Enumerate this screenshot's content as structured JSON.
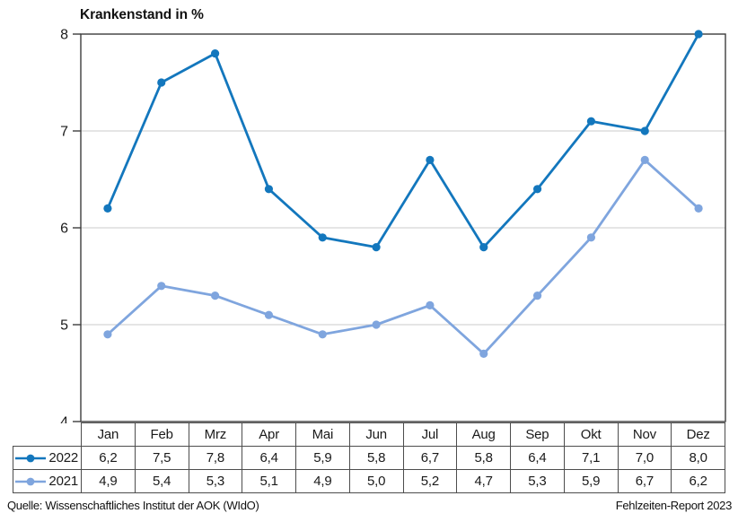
{
  "chart_data": {
    "type": "line",
    "title": "Krankenstand in %",
    "categories": [
      "Jan",
      "Feb",
      "Mrz",
      "Apr",
      "Mai",
      "Jun",
      "Jul",
      "Aug",
      "Sep",
      "Okt",
      "Nov",
      "Dez"
    ],
    "series": [
      {
        "name": "2022",
        "values": [
          6.2,
          7.5,
          7.8,
          6.4,
          5.9,
          5.8,
          6.7,
          5.8,
          6.4,
          7.1,
          7.0,
          8.0
        ],
        "labels": [
          "6,2",
          "7,5",
          "7,8",
          "6,4",
          "5,9",
          "5,8",
          "6,7",
          "5,8",
          "6,4",
          "7,1",
          "7,0",
          "8,0"
        ],
        "color": "#1377BD"
      },
      {
        "name": "2021",
        "values": [
          4.9,
          5.4,
          5.3,
          5.1,
          4.9,
          5.0,
          5.2,
          4.7,
          5.3,
          5.9,
          6.7,
          6.2
        ],
        "labels": [
          "4,9",
          "5,4",
          "5,3",
          "5,1",
          "4,9",
          "5,0",
          "5,2",
          "4,7",
          "5,3",
          "5,9",
          "6,7",
          "6,2"
        ],
        "color": "#7FA5DE"
      }
    ],
    "ylim": [
      4,
      8
    ],
    "yticks": [
      4,
      5,
      6,
      7,
      8
    ],
    "grid": "horizontal",
    "legend_position": "table-left"
  },
  "footer": {
    "source": "Quelle: Wissenschaftliches Institut der AOK (WIdO)",
    "report": "Fehlzeiten-Report 2023"
  },
  "colors": {
    "axis": "#3d3d3d",
    "grid": "#cbcbcb",
    "table_border": "#4d4d4d",
    "text": "#1a1a1a"
  }
}
